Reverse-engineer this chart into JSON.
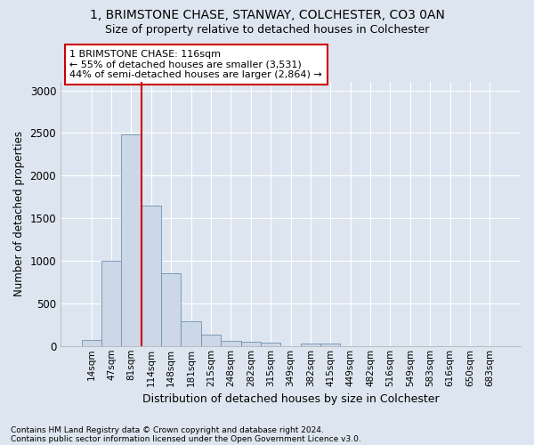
{
  "title1": "1, BRIMSTONE CHASE, STANWAY, COLCHESTER, CO3 0AN",
  "title2": "Size of property relative to detached houses in Colchester",
  "xlabel": "Distribution of detached houses by size in Colchester",
  "ylabel": "Number of detached properties",
  "categories": [
    "14sqm",
    "47sqm",
    "81sqm",
    "114sqm",
    "148sqm",
    "181sqm",
    "215sqm",
    "248sqm",
    "282sqm",
    "315sqm",
    "349sqm",
    "382sqm",
    "415sqm",
    "449sqm",
    "482sqm",
    "516sqm",
    "549sqm",
    "583sqm",
    "616sqm",
    "650sqm",
    "683sqm"
  ],
  "values": [
    70,
    1000,
    2480,
    1650,
    850,
    290,
    130,
    55,
    45,
    35,
    0,
    30,
    30,
    0,
    0,
    0,
    0,
    0,
    0,
    0,
    0
  ],
  "bar_color": "#ccd8e8",
  "bar_edge_color": "#7090b0",
  "vline_color": "#cc0000",
  "vline_x": 2.5,
  "annotation_text": "1 BRIMSTONE CHASE: 116sqm\n← 55% of detached houses are smaller (3,531)\n44% of semi-detached houses are larger (2,864) →",
  "annotation_box_facecolor": "#ffffff",
  "annotation_box_edgecolor": "#cc0000",
  "bg_color": "#dde6f0",
  "grid_color": "#ffffff",
  "footer1": "Contains HM Land Registry data © Crown copyright and database right 2024.",
  "footer2": "Contains public sector information licensed under the Open Government Licence v3.0.",
  "ylim": [
    0,
    3100
  ],
  "yticks": [
    0,
    500,
    1000,
    1500,
    2000,
    2500,
    3000
  ]
}
